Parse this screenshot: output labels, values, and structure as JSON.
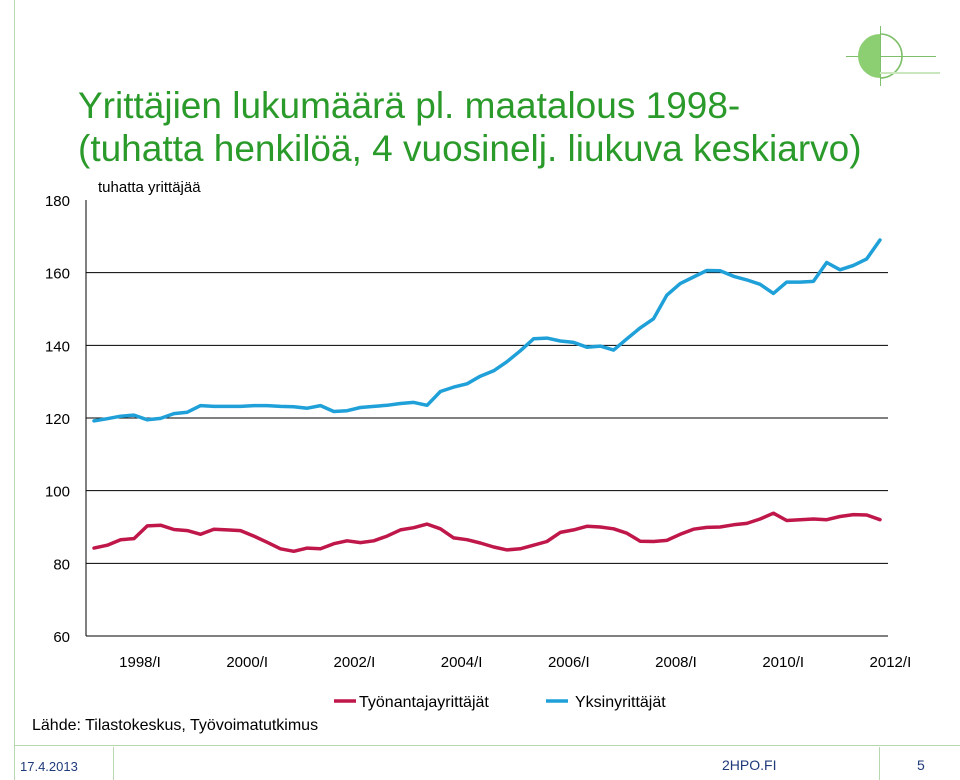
{
  "title_lines": [
    "Yrittäjien lukumäärä pl. maatalous 1998-",
    "(tuhatta henkilöä, 4 vuosinelj. liukuva keskiarvo)"
  ],
  "source": "Lähde: Tilastokeskus, Työvoimatutkimus",
  "footer": {
    "date": "17.4.2013",
    "site": "2HPO.FI",
    "page": "5"
  },
  "colors": {
    "title": "#2a9a2a",
    "employers": "#c0174a",
    "self_employed": "#1fa0d8"
  },
  "chart_data": {
    "type": "line",
    "ylabel": "tuhatta yrittäjää",
    "ylim": [
      60,
      180
    ],
    "yticks": [
      60,
      80,
      100,
      120,
      140,
      160,
      180
    ],
    "grid": true,
    "legend_position": "bottom",
    "x_tick_labels": [
      "1998/I",
      "2000/I",
      "2002/I",
      "2004/I",
      "2006/I",
      "2008/I",
      "2010/I",
      "2012/I"
    ],
    "x_start": "1998/I",
    "x_step": "quarter",
    "series": [
      {
        "name": "Työnantajayrittäjät",
        "color": "#c0174a",
        "values": [
          84.2,
          85.0,
          86.5,
          86.8,
          90.3,
          90.5,
          89.3,
          89.0,
          88.0,
          89.4,
          89.2,
          89.0,
          87.5,
          85.8,
          84.0,
          83.3,
          84.2,
          84.0,
          85.4,
          86.2,
          85.7,
          86.2,
          87.5,
          89.2,
          89.8,
          90.8,
          89.5,
          87.0,
          86.5,
          85.6,
          84.5,
          83.7,
          84.0,
          85.0,
          86.0,
          88.5,
          89.2,
          90.2,
          90.0,
          89.5,
          88.3,
          86.1,
          86.0,
          86.3,
          88.0,
          89.4,
          89.9,
          90.0,
          90.6,
          91.0,
          92.2,
          93.8,
          91.8,
          92.0,
          92.2,
          92.0,
          92.9,
          93.4,
          93.3,
          92.0
        ]
      },
      {
        "name": "Yksinyrittäjät",
        "color": "#1fa0d8",
        "values": [
          119.2,
          119.8,
          120.5,
          120.8,
          119.5,
          119.9,
          121.2,
          121.6,
          123.4,
          123.2,
          123.2,
          123.2,
          123.4,
          123.4,
          123.2,
          123.1,
          122.7,
          123.4,
          121.8,
          122.0,
          122.9,
          123.2,
          123.5,
          124.0,
          124.3,
          123.5,
          127.3,
          128.5,
          129.4,
          131.5,
          133.0,
          135.5,
          138.5,
          141.8,
          142.0,
          141.2,
          140.8,
          139.5,
          139.8,
          138.7,
          141.8,
          144.8,
          147.3,
          153.8,
          157.0,
          158.8,
          160.6,
          160.5,
          159.0,
          158.0,
          156.8,
          154.3,
          157.4,
          157.4,
          157.6,
          162.8,
          160.8,
          162.0,
          163.8,
          169.0
        ]
      }
    ]
  }
}
